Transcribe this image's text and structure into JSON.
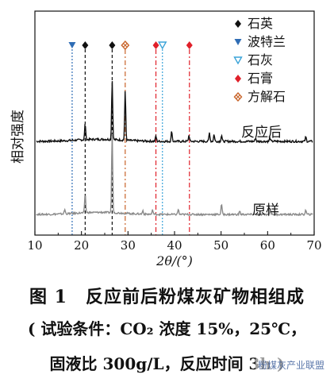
{
  "chart_data": {
    "type": "line",
    "x_range": [
      10,
      70
    ],
    "x_ticks": [
      "10",
      "20",
      "30",
      "40",
      "50",
      "60",
      "70"
    ],
    "ylabel": "相对强度",
    "xlabel": "2θ/(°)",
    "series": [
      {
        "name": "反应后",
        "color": "#111111",
        "baseline": 1.0,
        "noise": 0.06,
        "peaks": [
          {
            "x": 20.8,
            "h": 0.9
          },
          {
            "x": 26.6,
            "h": 3.4
          },
          {
            "x": 29.4,
            "h": 2.8
          },
          {
            "x": 36.0,
            "h": 0.3
          },
          {
            "x": 39.4,
            "h": 0.6
          },
          {
            "x": 43.1,
            "h": 0.35
          },
          {
            "x": 47.5,
            "h": 0.5
          },
          {
            "x": 48.5,
            "h": 0.4
          },
          {
            "x": 50.1,
            "h": 0.35
          },
          {
            "x": 57.4,
            "h": 0.2
          },
          {
            "x": 60.5,
            "h": 0.2
          },
          {
            "x": 68.2,
            "h": 0.25
          }
        ]
      },
      {
        "name": "原样",
        "color": "#8a8a8a",
        "baseline": 0.0,
        "noise": 0.05,
        "peaks": [
          {
            "x": 16.4,
            "h": 0.25
          },
          {
            "x": 20.8,
            "h": 1.1
          },
          {
            "x": 26.6,
            "h": 4.6
          },
          {
            "x": 33.2,
            "h": 0.2
          },
          {
            "x": 35.3,
            "h": 0.25
          },
          {
            "x": 40.8,
            "h": 0.3
          },
          {
            "x": 50.1,
            "h": 0.6
          },
          {
            "x": 54.0,
            "h": 0.2
          },
          {
            "x": 60.6,
            "h": 0.3
          },
          {
            "x": 68.2,
            "h": 0.25
          }
        ]
      }
    ],
    "reference_lines": [
      {
        "x": 18.0,
        "phase": "波特兰",
        "color": "#2f6db5",
        "style": "dotted"
      },
      {
        "x": 20.8,
        "phase": "石英",
        "color": "#111111",
        "style": "dashed"
      },
      {
        "x": 26.6,
        "phase": "石英",
        "color": "#111111",
        "style": "dashed"
      },
      {
        "x": 29.4,
        "phase": "方解石",
        "color": "#c8642a",
        "style": "dashdot"
      },
      {
        "x": 36.0,
        "phase": "石膏",
        "color": "#e0202a",
        "style": "dashdot"
      },
      {
        "x": 37.4,
        "phase": "石灰",
        "color": "#3aa3d8",
        "style": "dotted"
      },
      {
        "x": 43.2,
        "phase": "石膏",
        "color": "#e0202a",
        "style": "dashdot"
      }
    ],
    "legend": {
      "placement": "top-right",
      "entries": [
        {
          "label": "石英",
          "marker": "diamond",
          "color": "#111111"
        },
        {
          "label": "波特兰",
          "marker": "triangle-down-filled",
          "color": "#2f6db5"
        },
        {
          "label": "石灰",
          "marker": "triangle-down-open",
          "color": "#3aa3d8"
        },
        {
          "label": "石膏",
          "marker": "diamond",
          "color": "#e0202a"
        },
        {
          "label": "方解石",
          "marker": "diamond-x",
          "color": "#c8642a"
        }
      ]
    },
    "annotations": [
      "反应后",
      "原样"
    ]
  },
  "caption": {
    "line1": "图 1　反应前后粉煤灰矿物相组成",
    "line2": "( 试验条件：CO₂ 浓度 15%，25℃，",
    "line3": "固液比 300g/L，反应时间 3h )"
  },
  "watermark": "粉煤灰产业联盟"
}
